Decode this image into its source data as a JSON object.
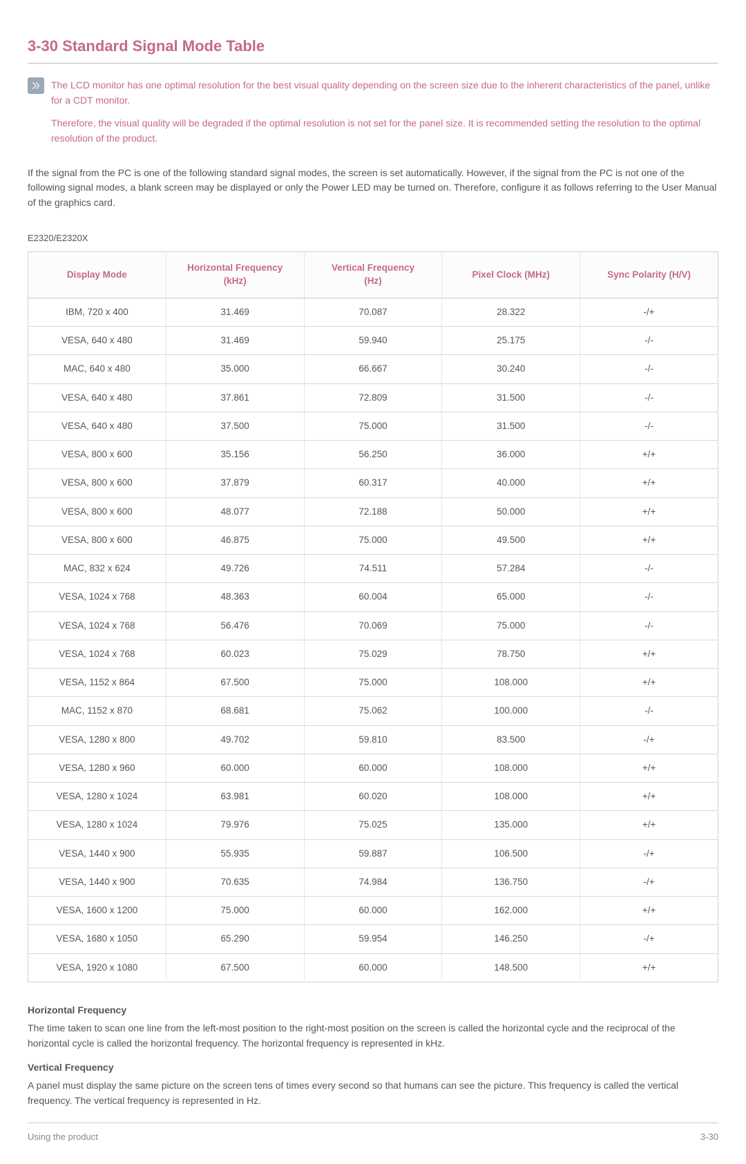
{
  "section": {
    "number": "3-30",
    "title": "Standard Signal Mode Table"
  },
  "note": {
    "paragraphs": [
      "The LCD monitor has one optimal resolution for the best visual quality depending on the screen size due to the inherent characteristics of the panel, unlike for a CDT monitor.",
      "Therefore, the visual quality will be degraded if the optimal resolution is not set for the panel size. It is recommended setting the resolution to the optimal resolution of the product."
    ]
  },
  "intro": "If the signal from the PC is one of the following standard signal modes, the screen is set automatically. However, if the signal from the PC is not one of the following signal modes, a blank screen may be displayed or only the Power LED may be turned on. Therefore, configure it as follows referring to the User Manual of the graphics card.",
  "model": "E2320/E2320X",
  "table": {
    "columns": [
      "Display Mode",
      "Horizontal Frequency (kHz)",
      "Vertical Frequency (Hz)",
      "Pixel Clock (MHz)",
      "Sync Polarity (H/V)"
    ],
    "rows": [
      [
        "IBM, 720 x 400",
        "31.469",
        "70.087",
        "28.322",
        "-/+"
      ],
      [
        "VESA, 640 x 480",
        "31.469",
        "59.940",
        "25.175",
        "-/-"
      ],
      [
        "MAC, 640 x 480",
        "35.000",
        "66.667",
        "30.240",
        "-/-"
      ],
      [
        "VESA, 640 x 480",
        "37.861",
        "72.809",
        "31.500",
        "-/-"
      ],
      [
        "VESA, 640 x 480",
        "37.500",
        "75.000",
        "31.500",
        "-/-"
      ],
      [
        "VESA, 800 x 600",
        "35.156",
        "56.250",
        "36.000",
        "+/+"
      ],
      [
        "VESA, 800 x 600",
        "37.879",
        "60.317",
        "40.000",
        "+/+"
      ],
      [
        "VESA, 800 x 600",
        "48.077",
        "72.188",
        "50.000",
        "+/+"
      ],
      [
        "VESA, 800 x 600",
        "46.875",
        "75.000",
        "49.500",
        "+/+"
      ],
      [
        "MAC, 832 x 624",
        "49.726",
        "74.511",
        "57.284",
        "-/-"
      ],
      [
        "VESA, 1024 x 768",
        "48.363",
        "60.004",
        "65.000",
        "-/-"
      ],
      [
        "VESA, 1024 x 768",
        "56.476",
        "70.069",
        "75.000",
        "-/-"
      ],
      [
        "VESA, 1024 x 768",
        "60.023",
        "75.029",
        "78.750",
        "+/+"
      ],
      [
        "VESA, 1152 x 864",
        "67.500",
        "75.000",
        "108.000",
        "+/+"
      ],
      [
        "MAC, 1152 x 870",
        "68.681",
        "75.062",
        "100.000",
        "-/-"
      ],
      [
        "VESA, 1280 x 800",
        "49.702",
        "59.810",
        "83.500",
        "-/+"
      ],
      [
        "VESA, 1280 x 960",
        "60.000",
        "60.000",
        "108.000",
        "+/+"
      ],
      [
        "VESA, 1280 x 1024",
        "63.981",
        "60.020",
        "108.000",
        "+/+"
      ],
      [
        "VESA, 1280 x 1024",
        "79.976",
        "75.025",
        "135.000",
        "+/+"
      ],
      [
        "VESA, 1440 x 900",
        "55.935",
        "59.887",
        "106.500",
        "-/+"
      ],
      [
        "VESA, 1440 x 900",
        "70.635",
        "74.984",
        "136.750",
        "-/+"
      ],
      [
        "VESA, 1600 x 1200",
        "75.000",
        "60.000",
        "162.000",
        "+/+"
      ],
      [
        "VESA, 1680 x 1050",
        "65.290",
        "59.954",
        "146.250",
        "-/+"
      ],
      [
        "VESA, 1920 x 1080",
        "67.500",
        "60.000",
        "148.500",
        "+/+"
      ]
    ]
  },
  "definitions": [
    {
      "title": "Horizontal Frequency",
      "body": "The time taken to scan one line from the left-most position to the right-most position on the screen is called the horizontal cycle and the reciprocal of the horizontal cycle is called the horizontal frequency. The horizontal frequency is represented in kHz."
    },
    {
      "title": "Vertical Frequency",
      "body": "A panel must display the same picture on the screen tens of times every second so that humans can see the picture. This frequency is called the vertical frequency. The vertical frequency is represented in Hz."
    }
  ],
  "footer": {
    "left": "Using the product",
    "right": "3-30"
  },
  "colors": {
    "accent": "#c56b82",
    "text": "#555555",
    "border": "#d0d0d0"
  }
}
